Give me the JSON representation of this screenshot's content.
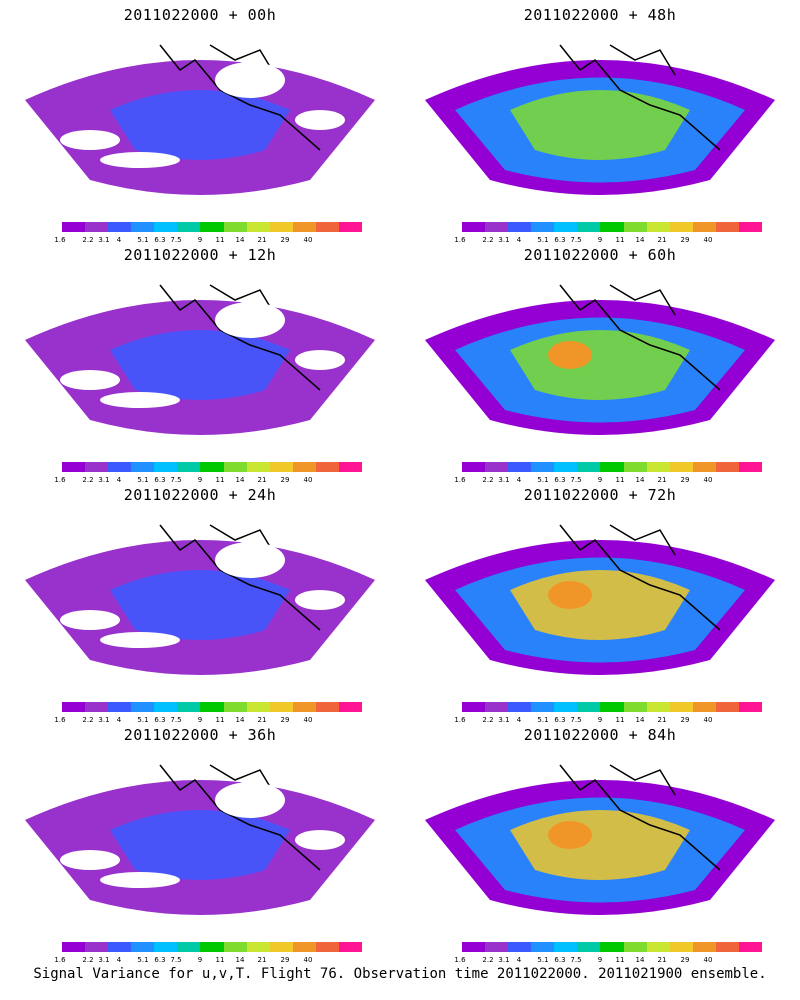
{
  "panels": [
    {
      "title": "2011022000 + 00h",
      "intensity": 0.18
    },
    {
      "title": "2011022000 + 48h",
      "intensity": 0.55
    },
    {
      "title": "2011022000 + 12h",
      "intensity": 0.28
    },
    {
      "title": "2011022000 + 60h",
      "intensity": 0.62
    },
    {
      "title": "2011022000 + 24h",
      "intensity": 0.35
    },
    {
      "title": "2011022000 + 72h",
      "intensity": 0.72
    },
    {
      "title": "2011022000 + 36h",
      "intensity": 0.42
    },
    {
      "title": "2011022000 + 84h",
      "intensity": 0.8
    }
  ],
  "colorbar": {
    "labels": [
      "1.6",
      "2.2",
      "3.1",
      "4",
      "5.1",
      "6.3",
      "7.5",
      "9",
      "11",
      "14",
      "21",
      "29",
      "40"
    ],
    "colors": [
      "#9400d3",
      "#9932cc",
      "#3b5bff",
      "#1e90ff",
      "#00bfff",
      "#00c9a7",
      "#00c800",
      "#7fdc2f",
      "#c8e632",
      "#f0c828",
      "#f09628",
      "#f0643c",
      "#ff1493"
    ]
  },
  "footer": "Signal Variance for u,v,T. Flight 76. Observation time 2011022000. 2011021900 ensemble."
}
